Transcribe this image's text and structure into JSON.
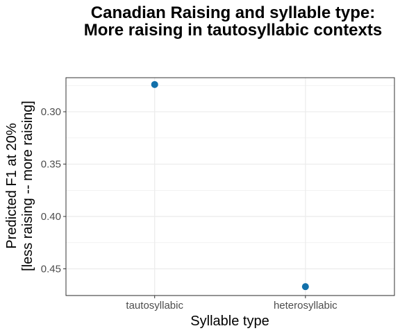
{
  "chart_data": {
    "type": "scatter",
    "title_line1": "Canadian Raising and syllable type:",
    "title_line2": "More raising in tautosyllabic contexts",
    "xlabel": "Syllable type",
    "ylabel_line1": "Predicted F1 at 20%",
    "ylabel_line2": "[less raising -- more raising]",
    "categories": [
      "tautosyllabic",
      "heterosyllabic"
    ],
    "values": [
      0.274,
      0.467
    ],
    "y_ticks": [
      0.3,
      0.35,
      0.4,
      0.45
    ],
    "y_tick_labels": [
      "0.30",
      "0.35",
      "0.40",
      "0.45"
    ],
    "ylim": [
      0.2675,
      0.4755
    ],
    "y_reversed": true,
    "grid": true,
    "point_color": "#1170aa"
  }
}
